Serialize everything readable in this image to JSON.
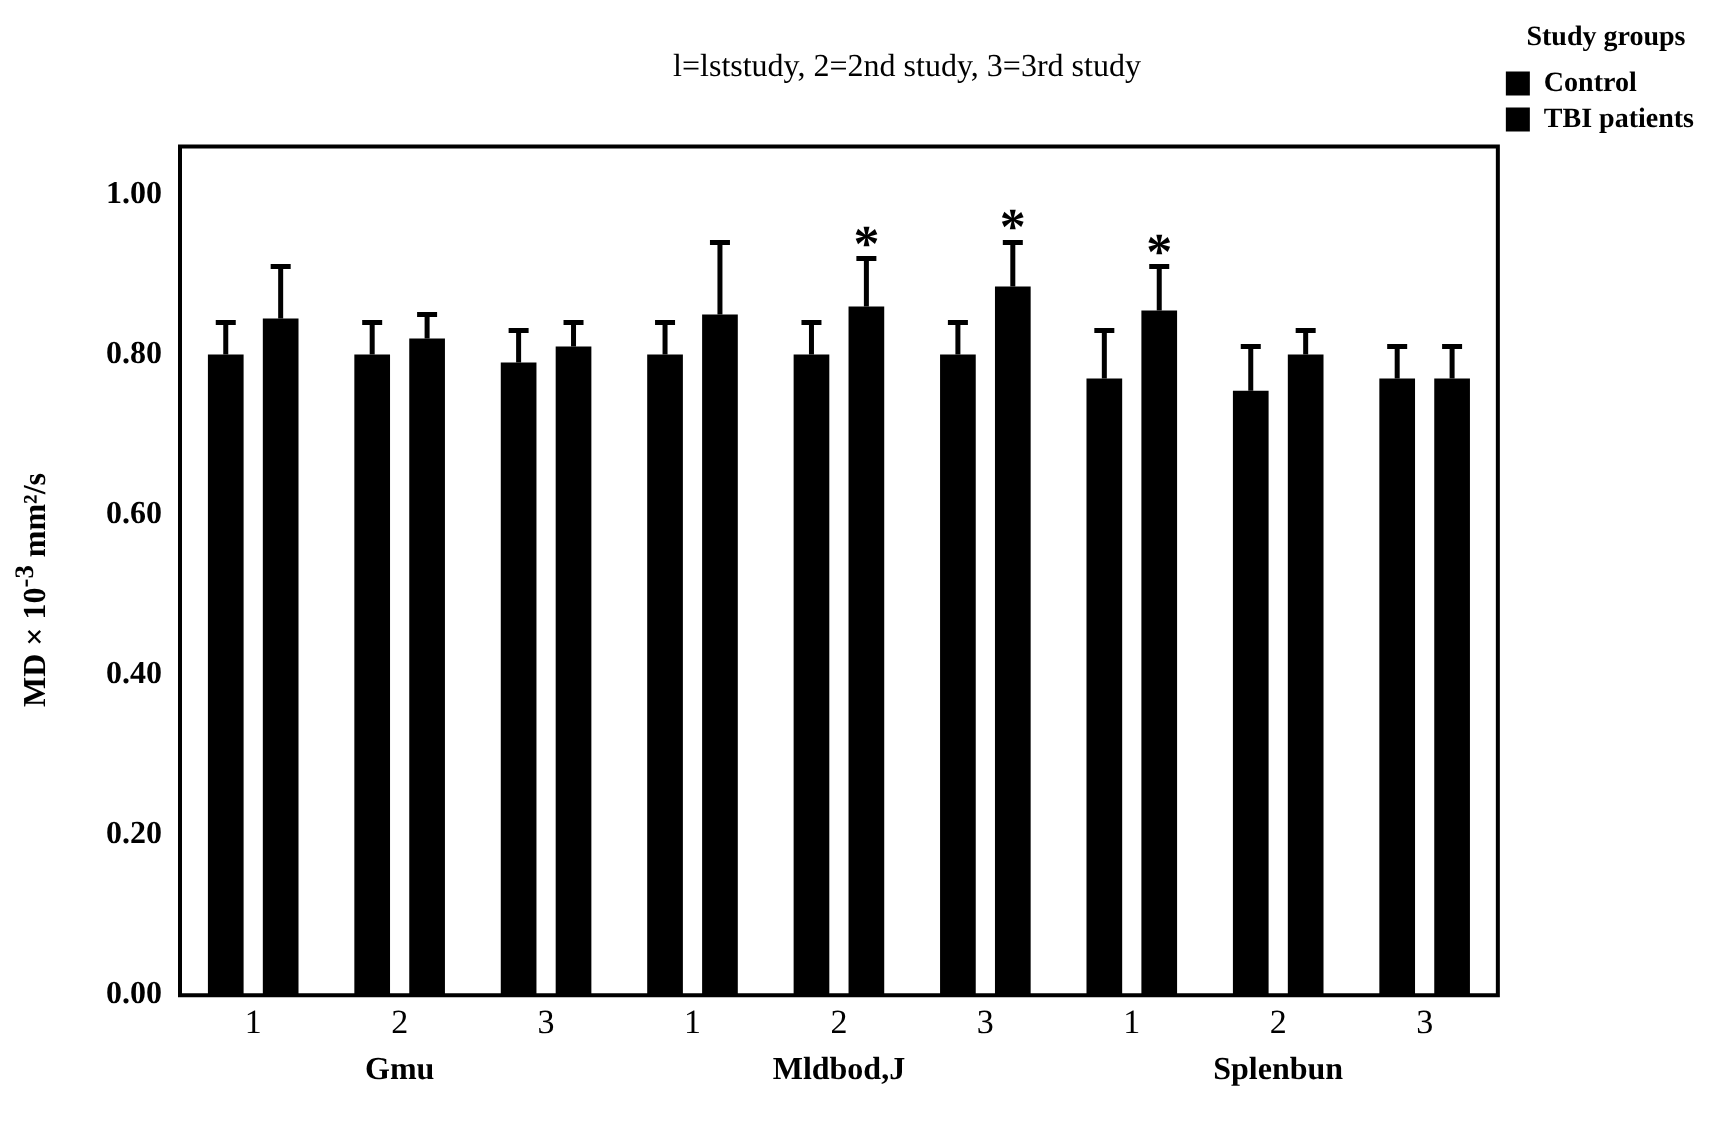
{
  "chart_data": {
    "type": "bar",
    "title": "l=lststudy, 2=2nd study, 3=3rd study",
    "ylabel": "MD × 10$^{-3}$ mm²/s",
    "legend_title": "Study groups",
    "categories": [
      "1",
      "2",
      "3",
      "1",
      "2",
      "3",
      "1",
      "2",
      "3"
    ],
    "annotations": [
      "Gmu",
      "Mldbod,J",
      "Splenbun"
    ],
    "series": [
      {
        "name": "Control",
        "color": "#000000",
        "values": [
          0.8,
          0.8,
          0.79,
          0.8,
          0.8,
          0.8,
          0.77,
          0.755,
          0.77
        ],
        "errors": [
          [
            0.8,
            0.84
          ],
          [
            0.8,
            0.84
          ],
          [
            0.79,
            0.83
          ],
          [
            0.8,
            0.84
          ],
          [
            0.8,
            0.84
          ],
          [
            0.8,
            0.84
          ],
          [
            0.77,
            0.83
          ],
          [
            0.755,
            0.81
          ],
          [
            0.77,
            0.81
          ]
        ]
      },
      {
        "name": "TBI patients",
        "color": "#000000",
        "values": [
          0.845,
          0.82,
          0.81,
          0.85,
          0.86,
          0.885,
          0.855,
          0.8,
          0.77
        ],
        "errors": [
          [
            0.845,
            0.91
          ],
          [
            0.82,
            0.85
          ],
          [
            0.81,
            0.84
          ],
          [
            0.85,
            0.94
          ],
          [
            0.86,
            0.92
          ],
          [
            0.885,
            0.94
          ],
          [
            0.855,
            0.91
          ],
          [
            0.8,
            0.83
          ],
          [
            0.77,
            0.81
          ]
        ],
        "value_labels": [
          null,
          null,
          null,
          null,
          "*",
          "*",
          "*",
          null,
          null
        ]
      }
    ],
    "ylim": [
      0,
      1.06
    ],
    "yticks": [
      {
        "value": 0,
        "label": "0.00"
      },
      {
        "value": 0.2,
        "label": "0.20"
      },
      {
        "value": 0.4,
        "label": "0.40"
      },
      {
        "value": 0.6,
        "label": "0.60"
      },
      {
        "value": 0.8,
        "label": "0.80"
      },
      {
        "value": 1.0,
        "label": "1.00"
      }
    ],
    "grid": false,
    "legend": "top right"
  }
}
